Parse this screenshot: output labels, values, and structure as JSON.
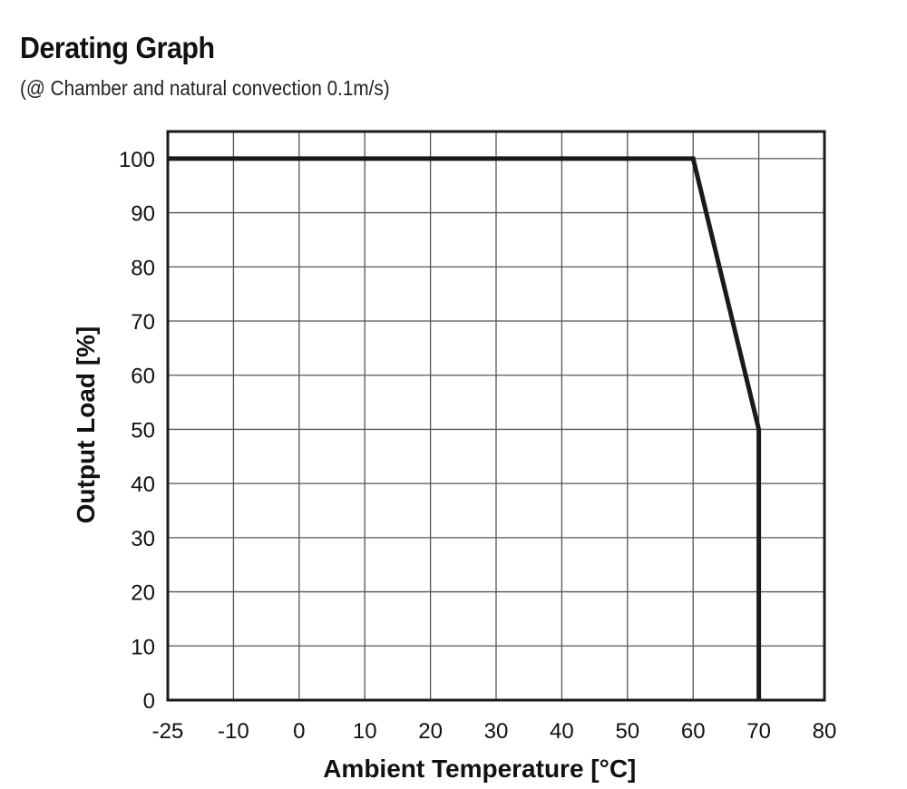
{
  "header": {
    "title": "Derating Graph",
    "subtitle": "(@ Chamber and natural convection 0.1m/s)"
  },
  "chart_data": {
    "type": "line",
    "title": "Derating Graph",
    "subtitle": "(@ Chamber and natural convection 0.1m/s)",
    "xlabel": "Ambient Temperature [°C]",
    "ylabel": "Output Load [%]",
    "xlim": [
      -25,
      80
    ],
    "ylim": [
      0,
      105
    ],
    "x_ticks": [
      -25,
      -10,
      0,
      10,
      20,
      30,
      40,
      50,
      60,
      70,
      80
    ],
    "x_tick_labels": [
      "-25",
      "-10",
      "0",
      "10",
      "20",
      "30",
      "40",
      "50",
      "60",
      "70",
      "80"
    ],
    "y_ticks": [
      0,
      10,
      20,
      30,
      40,
      50,
      60,
      70,
      80,
      90,
      100
    ],
    "y_tick_labels": [
      "0",
      "10",
      "20",
      "30",
      "40",
      "50",
      "60",
      "70",
      "80",
      "90",
      "100"
    ],
    "grid": true,
    "series": [
      {
        "x": [
          -25,
          60,
          70,
          70
        ],
        "y": [
          100,
          100,
          50,
          0
        ],
        "color": "#1a1a1a"
      }
    ]
  }
}
